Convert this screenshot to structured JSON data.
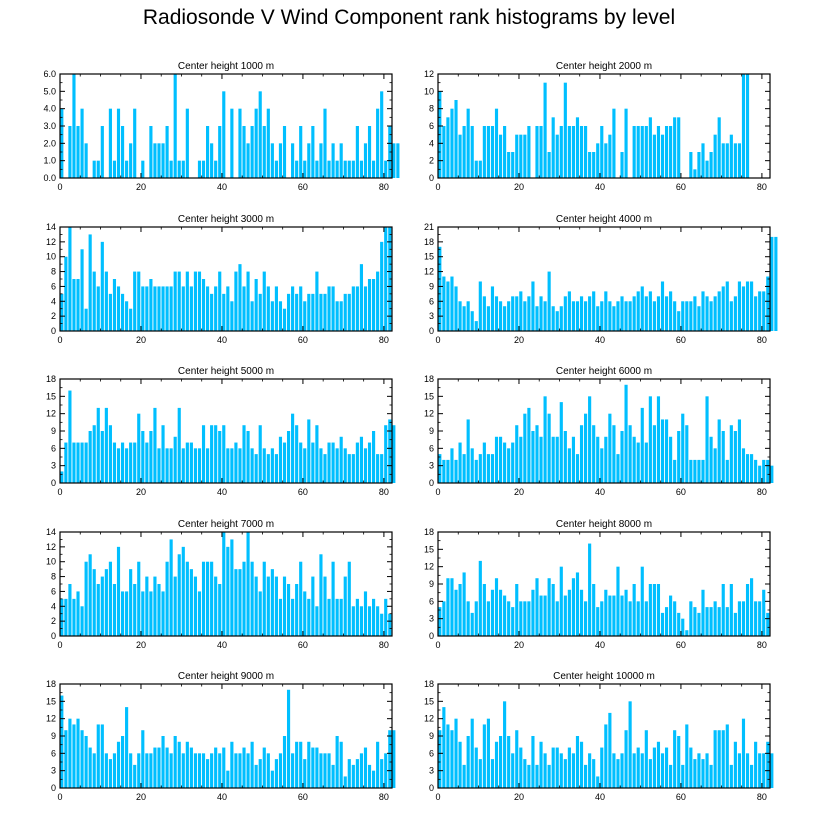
{
  "chart_data": {
    "type": "bar",
    "title": "Radiosonde V Wind Component rank histograms by level",
    "bar_color": "#00bfff",
    "x_ticks": [
      0,
      20,
      40,
      60,
      80
    ],
    "xlim": [
      0,
      82
    ],
    "panels": [
      {
        "title": "Center height 1000 m",
        "ylim": [
          0,
          6
        ],
        "y_ticks": [
          "0.0",
          "1.0",
          "2.0",
          "3.0",
          "4.0",
          "5.0",
          "6.0"
        ],
        "y_tick_values": [
          0,
          1,
          2,
          3,
          4,
          5,
          6
        ],
        "values": [
          4,
          0,
          3,
          6,
          3,
          4,
          2,
          0,
          1,
          1,
          3,
          0,
          4,
          1,
          4,
          3,
          1,
          2,
          4,
          0,
          1,
          0,
          3,
          2,
          2,
          2,
          3,
          1,
          6,
          1,
          1,
          4,
          0,
          0,
          1,
          1,
          3,
          2,
          1,
          3,
          5,
          0,
          4,
          0,
          4,
          3,
          2,
          3,
          4,
          5,
          3,
          4,
          2,
          1,
          2,
          3,
          0,
          2,
          1,
          3,
          1,
          2,
          3,
          1,
          2,
          4,
          1,
          2,
          1,
          2,
          1,
          1,
          1,
          3,
          1,
          2,
          3,
          1,
          4,
          5,
          1,
          3,
          2,
          2
        ]
      },
      {
        "title": "Center height 2000 m",
        "ylim": [
          0,
          12
        ],
        "y_ticks": [
          "0",
          "2",
          "4",
          "6",
          "8",
          "10",
          "12"
        ],
        "y_tick_values": [
          0,
          2,
          4,
          6,
          8,
          10,
          12
        ],
        "values": [
          10,
          6,
          7,
          8,
          9,
          5,
          6,
          8,
          6,
          2,
          2,
          6,
          6,
          6,
          8,
          5,
          6,
          3,
          3,
          5,
          5,
          5,
          6,
          0,
          6,
          6,
          11,
          3,
          7,
          5,
          6,
          11,
          6,
          6,
          7,
          6,
          6,
          3,
          3,
          4,
          6,
          4,
          5,
          8,
          0,
          3,
          8,
          0,
          6,
          6,
          6,
          6,
          7,
          5,
          6,
          5,
          6,
          6,
          7,
          7,
          0,
          0,
          3,
          1,
          3,
          4,
          2,
          3,
          5,
          7,
          4,
          4,
          5,
          4,
          4,
          12,
          12
        ]
      },
      {
        "title": "Center height 3000 m",
        "ylim": [
          0,
          14
        ],
        "y_ticks": [
          "0",
          "2",
          "4",
          "6",
          "8",
          "10",
          "12",
          "14"
        ],
        "y_tick_values": [
          0,
          2,
          4,
          6,
          8,
          10,
          12,
          14
        ],
        "values": [
          5,
          10,
          14,
          7,
          7,
          11,
          3,
          13,
          8,
          6,
          12,
          8,
          5,
          7,
          6,
          5,
          4,
          3,
          8,
          8,
          6,
          6,
          7,
          6,
          6,
          6,
          6,
          6,
          8,
          8,
          6,
          8,
          6,
          8,
          8,
          7,
          6,
          5,
          6,
          8,
          5,
          6,
          4,
          8,
          9,
          6,
          8,
          4,
          7,
          5,
          8,
          6,
          4,
          6,
          4,
          3,
          5,
          6,
          5,
          6,
          4,
          5,
          5,
          8,
          5,
          5,
          6,
          6,
          4,
          4,
          5,
          5,
          6,
          6,
          9,
          6,
          7,
          7,
          8,
          12,
          14,
          14
        ]
      },
      {
        "title": "Center height 4000 m",
        "ylim": [
          0,
          21
        ],
        "y_ticks": [
          "0",
          "3",
          "6",
          "9",
          "12",
          "15",
          "18",
          "21"
        ],
        "y_tick_values": [
          0,
          3,
          6,
          9,
          12,
          15,
          18,
          21
        ],
        "values": [
          17,
          11,
          10,
          11,
          9,
          6,
          5,
          6,
          4,
          2,
          10,
          7,
          5,
          9,
          7,
          6,
          5,
          6,
          7,
          7,
          8,
          6,
          7,
          10,
          5,
          7,
          6,
          12,
          5,
          4,
          5,
          7,
          8,
          6,
          6,
          7,
          6,
          7,
          8,
          5,
          6,
          8,
          6,
          5,
          6,
          7,
          6,
          6,
          7,
          8,
          9,
          7,
          8,
          6,
          7,
          10,
          7,
          8,
          6,
          4,
          6,
          6,
          6,
          7,
          5,
          8,
          7,
          6,
          7,
          8,
          9,
          10,
          6,
          7,
          10,
          9,
          10,
          10,
          7,
          8,
          8,
          11,
          19,
          19
        ]
      },
      {
        "title": "Center height 5000 m",
        "ylim": [
          0,
          18
        ],
        "y_ticks": [
          "0",
          "3",
          "6",
          "9",
          "12",
          "15",
          "18"
        ],
        "y_tick_values": [
          0,
          3,
          6,
          9,
          12,
          15,
          18
        ],
        "values": [
          2,
          7,
          16,
          7,
          7,
          7,
          7,
          9,
          10,
          13,
          9,
          13,
          10,
          7,
          6,
          7,
          6,
          7,
          7,
          12,
          9,
          7,
          9,
          13,
          6,
          10,
          6,
          6,
          8,
          13,
          6,
          7,
          7,
          6,
          6,
          10,
          6,
          10,
          10,
          9,
          10,
          6,
          6,
          7,
          6,
          10,
          9,
          6,
          5,
          10,
          6,
          5,
          6,
          5,
          8,
          7,
          9,
          12,
          10,
          7,
          6,
          11,
          7,
          10,
          6,
          5,
          7,
          7,
          6,
          8,
          6,
          5,
          5,
          7,
          8,
          6,
          7,
          9,
          5,
          5,
          10,
          11,
          10
        ]
      },
      {
        "title": "Center height 6000 m",
        "ylim": [
          0,
          18
        ],
        "y_ticks": [
          "0",
          "3",
          "6",
          "9",
          "12",
          "15",
          "18"
        ],
        "y_tick_values": [
          0,
          3,
          6,
          9,
          12,
          15,
          18
        ],
        "values": [
          5,
          4,
          4,
          6,
          4,
          7,
          5,
          11,
          6,
          4,
          5,
          7,
          5,
          5,
          8,
          8,
          7,
          6,
          7,
          10,
          8,
          12,
          13,
          9,
          10,
          8,
          15,
          12,
          8,
          8,
          14,
          9,
          6,
          8,
          5,
          10,
          12,
          15,
          10,
          8,
          6,
          8,
          12,
          10,
          5,
          9,
          17,
          10,
          8,
          7,
          13,
          7,
          15,
          10,
          15,
          11,
          11,
          8,
          4,
          9,
          12,
          10,
          4,
          4,
          4,
          4,
          15,
          8,
          6,
          11,
          9,
          4,
          10,
          9,
          11,
          6,
          5,
          5,
          4,
          3,
          4,
          4,
          3
        ]
      },
      {
        "title": "Center height 7000 m",
        "ylim": [
          0,
          14
        ],
        "y_ticks": [
          "0",
          "2",
          "4",
          "6",
          "8",
          "10",
          "12",
          "14"
        ],
        "y_tick_values": [
          0,
          2,
          4,
          6,
          8,
          10,
          12,
          14
        ],
        "values": [
          5,
          5,
          7,
          5,
          6,
          4,
          10,
          11,
          9,
          7,
          8,
          9,
          10,
          7,
          12,
          6,
          6,
          9,
          7,
          10,
          6,
          8,
          6,
          8,
          7,
          6,
          10,
          13,
          8,
          11,
          12,
          10,
          9,
          8,
          6,
          10,
          10,
          10,
          8,
          7,
          14,
          12,
          13,
          9,
          9,
          10,
          14,
          10,
          8,
          6,
          10,
          8,
          9,
          8,
          5,
          8,
          7,
          5,
          7,
          10,
          6,
          5,
          8,
          4,
          11,
          8,
          5,
          10,
          5,
          5,
          8,
          10,
          4,
          5,
          4,
          6,
          4,
          5,
          4,
          3,
          5,
          3
        ]
      },
      {
        "title": "Center height 8000 m",
        "ylim": [
          0,
          18
        ],
        "y_ticks": [
          "0",
          "3",
          "6",
          "9",
          "12",
          "15",
          "18"
        ],
        "y_tick_values": [
          0,
          3,
          6,
          9,
          12,
          15,
          18
        ],
        "values": [
          5,
          6,
          10,
          10,
          8,
          9,
          11,
          6,
          4,
          6,
          13,
          9,
          6,
          8,
          10,
          8,
          7,
          6,
          5,
          9,
          6,
          6,
          6,
          8,
          10,
          7,
          7,
          10,
          9,
          6,
          12,
          7,
          8,
          10,
          11,
          8,
          6,
          16,
          9,
          5,
          6,
          8,
          7,
          7,
          12,
          7,
          8,
          6,
          9,
          6,
          12,
          6,
          9,
          9,
          9,
          4,
          5,
          7,
          6,
          4,
          3,
          1,
          6,
          5,
          4,
          8,
          5,
          5,
          6,
          5,
          9,
          5,
          9,
          4,
          6,
          6,
          9,
          10,
          6,
          6,
          8,
          4
        ]
      },
      {
        "title": "Center height 9000 m",
        "ylim": [
          0,
          18
        ],
        "y_ticks": [
          "0",
          "3",
          "6",
          "9",
          "12",
          "15",
          "18"
        ],
        "y_tick_values": [
          0,
          3,
          6,
          9,
          12,
          15,
          18
        ],
        "values": [
          16,
          10,
          12,
          11,
          12,
          10,
          9,
          7,
          6,
          11,
          11,
          6,
          5,
          6,
          8,
          9,
          14,
          6,
          4,
          6,
          10,
          6,
          6,
          7,
          7,
          9,
          7,
          6,
          9,
          8,
          6,
          8,
          7,
          6,
          6,
          6,
          5,
          6,
          7,
          6,
          7,
          3,
          8,
          6,
          6,
          7,
          6,
          8,
          4,
          5,
          7,
          6,
          3,
          5,
          6,
          9,
          17,
          6,
          8,
          8,
          5,
          8,
          7,
          7,
          6,
          6,
          6,
          4,
          9,
          8,
          2,
          5,
          4,
          5,
          6,
          7,
          4,
          3,
          8,
          5,
          6,
          10,
          10
        ]
      },
      {
        "title": "Center height 10000 m",
        "ylim": [
          0,
          18
        ],
        "y_ticks": [
          "0",
          "3",
          "6",
          "9",
          "12",
          "15",
          "18"
        ],
        "y_tick_values": [
          0,
          3,
          6,
          9,
          12,
          15,
          18
        ],
        "values": [
          10,
          14,
          11,
          10,
          12,
          8,
          4,
          9,
          12,
          7,
          5,
          11,
          12,
          5,
          8,
          9,
          15,
          9,
          6,
          10,
          7,
          5,
          4,
          9,
          4,
          8,
          6,
          4,
          7,
          7,
          6,
          5,
          7,
          6,
          9,
          8,
          4,
          6,
          5,
          2,
          7,
          11,
          13,
          6,
          5,
          6,
          10,
          15,
          6,
          7,
          6,
          10,
          5,
          7,
          8,
          6,
          7,
          4,
          10,
          9,
          4,
          11,
          7,
          5,
          6,
          5,
          6,
          4,
          10,
          10,
          10,
          11,
          4,
          8,
          6,
          12,
          6,
          4,
          8,
          6,
          6,
          8,
          6
        ]
      }
    ]
  }
}
